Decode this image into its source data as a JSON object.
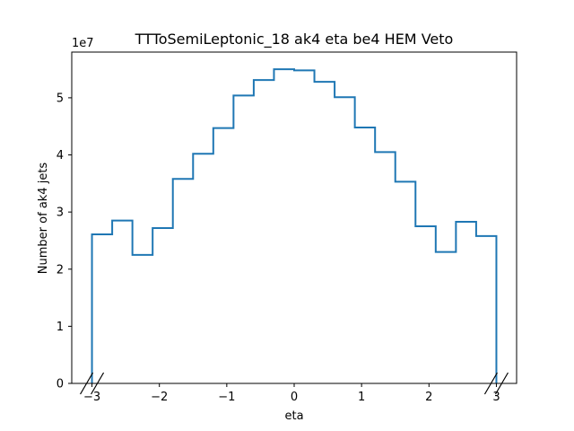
{
  "chart_data": {
    "type": "step-histogram",
    "title": "TTToSemiLeptonic_18 ak4 eta be4 HEM Veto",
    "xlabel": "eta",
    "ylabel": "Number of ak4 jets",
    "y_offset_label": "1e7",
    "y_scale": 10000000,
    "xlim": [
      -3.3,
      3.3
    ],
    "ylim": [
      0,
      5.8
    ],
    "x_ticks": [
      -3,
      -2,
      -1,
      0,
      1,
      2,
      3
    ],
    "x_tick_labels": [
      "−3",
      "−2",
      "−1",
      "0",
      "1",
      "2",
      "3"
    ],
    "y_ticks": [
      0,
      1,
      2,
      3,
      4,
      5
    ],
    "y_tick_labels": [
      "0",
      "1",
      "2",
      "3",
      "4",
      "5"
    ],
    "axis_breaks": [
      -3,
      3
    ],
    "line_color": "#1f77b4",
    "bin_edges": [
      -3.0,
      -2.7,
      -2.4,
      -2.1,
      -1.8,
      -1.5,
      -1.2,
      -0.9,
      -0.6,
      -0.3,
      0.0,
      0.3,
      0.6,
      0.9,
      1.2,
      1.5,
      1.8,
      2.1,
      2.4,
      2.7,
      3.0
    ],
    "values": [
      2.61,
      2.85,
      2.25,
      2.72,
      3.58,
      4.02,
      4.47,
      5.04,
      5.31,
      5.5,
      5.48,
      5.28,
      5.01,
      4.48,
      4.05,
      3.53,
      2.75,
      2.3,
      2.83,
      2.58
    ]
  }
}
